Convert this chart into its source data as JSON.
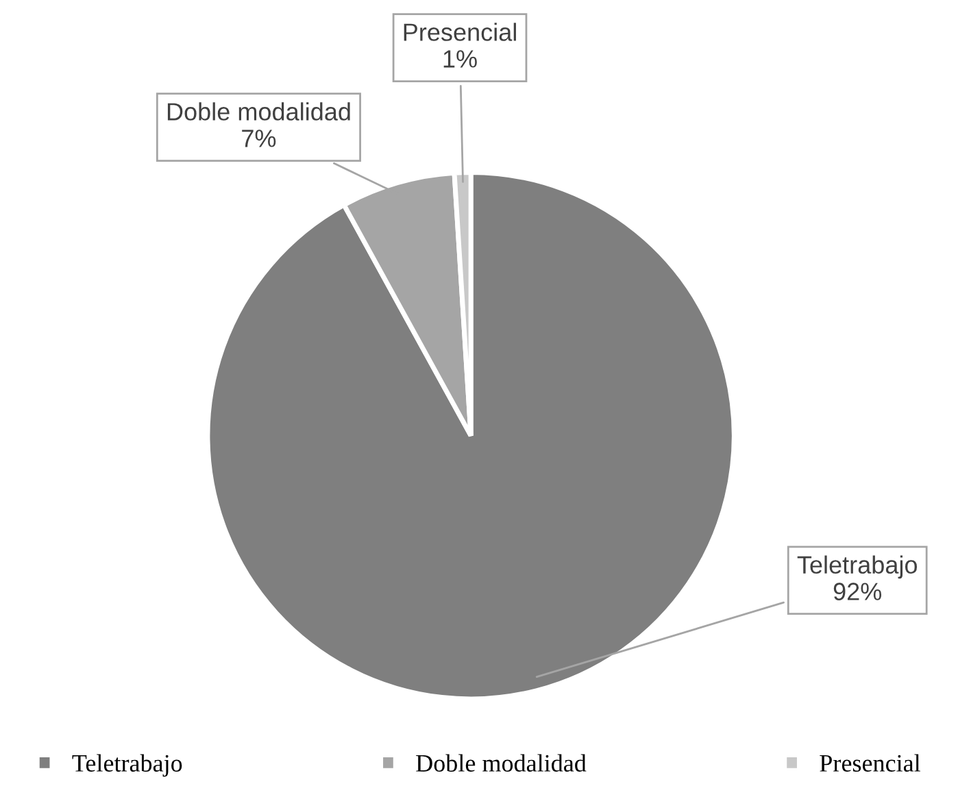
{
  "chart_data": {
    "type": "pie",
    "categories": [
      "Teletrabajo",
      "Doble modalidad",
      "Presencial"
    ],
    "values": [
      92,
      7,
      1
    ],
    "colors": [
      "#7f7f7f",
      "#a5a5a5",
      "#c8c8c8"
    ],
    "value_labels": [
      "92%",
      "7%",
      "1%"
    ],
    "legend": "bottom"
  }
}
